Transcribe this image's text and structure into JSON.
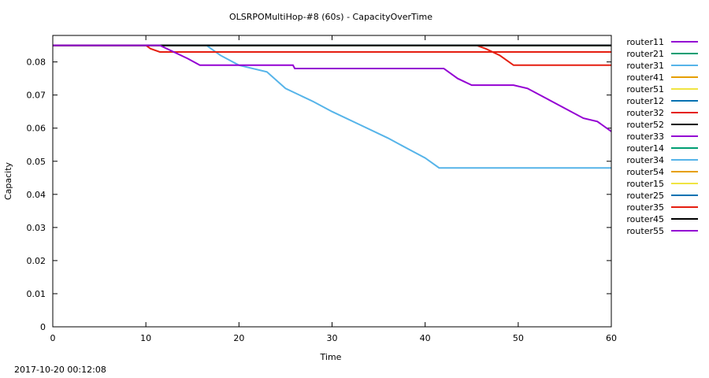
{
  "footer": {
    "timestamp": "2017-10-20 00:12:08"
  },
  "chart_data": {
    "type": "line",
    "title": "OLSRPOMultiHop-#8 (60s) - CapacityOverTime",
    "xlabel": "Time",
    "ylabel": "Capacity",
    "xlim": [
      0,
      60
    ],
    "ylim": [
      0,
      0.088
    ],
    "xticks": [
      0,
      10,
      20,
      30,
      40,
      50,
      60
    ],
    "yticks": [
      0,
      0.01,
      0.02,
      0.03,
      0.04,
      0.05,
      0.06,
      0.07,
      0.08
    ],
    "grid": false,
    "legend_position": "outside-right",
    "series": [
      {
        "name": "router11",
        "color": "#9400d3",
        "points": [
          [
            0,
            0.085
          ],
          [
            60,
            0.085
          ]
        ]
      },
      {
        "name": "router21",
        "color": "#009e73",
        "points": [
          [
            0,
            0.085
          ],
          [
            60,
            0.085
          ]
        ]
      },
      {
        "name": "router31",
        "color": "#56b4e9",
        "points": [
          [
            0,
            0.085
          ],
          [
            60,
            0.085
          ]
        ]
      },
      {
        "name": "router41",
        "color": "#e69f00",
        "points": [
          [
            0,
            0.085
          ],
          [
            60,
            0.085
          ]
        ]
      },
      {
        "name": "router51",
        "color": "#f0e442",
        "points": [
          [
            0,
            0.085
          ],
          [
            60,
            0.085
          ]
        ]
      },
      {
        "name": "router12",
        "color": "#0072b2",
        "points": [
          [
            0,
            0.085
          ],
          [
            60,
            0.085
          ]
        ]
      },
      {
        "name": "router32",
        "color": "#e51e10",
        "points": [
          [
            0,
            0.085
          ],
          [
            45.5,
            0.085
          ],
          [
            46.5,
            0.084
          ],
          [
            48,
            0.082
          ],
          [
            49.5,
            0.079
          ],
          [
            60,
            0.079
          ]
        ]
      },
      {
        "name": "router52",
        "color": "#000000",
        "points": [
          [
            0,
            0.085
          ],
          [
            60,
            0.085
          ]
        ]
      },
      {
        "name": "router33",
        "color": "#9400d3",
        "points": [
          [
            0,
            0.085
          ],
          [
            60,
            0.085
          ]
        ]
      },
      {
        "name": "router14",
        "color": "#009e73",
        "points": [
          [
            0,
            0.085
          ],
          [
            60,
            0.085
          ]
        ]
      },
      {
        "name": "router34",
        "color": "#56b4e9",
        "points": [
          [
            0,
            0.085
          ],
          [
            16.5,
            0.085
          ],
          [
            18,
            0.082
          ],
          [
            20,
            0.079
          ],
          [
            23,
            0.077
          ],
          [
            25,
            0.072
          ],
          [
            28,
            0.068
          ],
          [
            30,
            0.065
          ],
          [
            33,
            0.061
          ],
          [
            36,
            0.057
          ],
          [
            38,
            0.054
          ],
          [
            40,
            0.051
          ],
          [
            41.5,
            0.048
          ],
          [
            60,
            0.048
          ]
        ]
      },
      {
        "name": "router54",
        "color": "#e69f00",
        "points": [
          [
            0,
            0.085
          ],
          [
            60,
            0.085
          ]
        ]
      },
      {
        "name": "router15",
        "color": "#f0e442",
        "points": [
          [
            0,
            0.085
          ],
          [
            60,
            0.085
          ]
        ]
      },
      {
        "name": "router25",
        "color": "#0072b2",
        "points": [
          [
            0,
            0.085
          ],
          [
            60,
            0.085
          ]
        ]
      },
      {
        "name": "router35",
        "color": "#e51e10",
        "points": [
          [
            0,
            0.085
          ],
          [
            10,
            0.085
          ],
          [
            10.5,
            0.084
          ],
          [
            11.5,
            0.083
          ],
          [
            60,
            0.083
          ]
        ]
      },
      {
        "name": "router45",
        "color": "#000000",
        "points": [
          [
            0,
            0.085
          ],
          [
            60,
            0.085
          ]
        ]
      },
      {
        "name": "router55",
        "color": "#9400d3",
        "points": [
          [
            0,
            0.085
          ],
          [
            11.5,
            0.085
          ],
          [
            13,
            0.083
          ],
          [
            14.5,
            0.081
          ],
          [
            15.8,
            0.079
          ],
          [
            25.8,
            0.079
          ],
          [
            26,
            0.078
          ],
          [
            42,
            0.078
          ],
          [
            43.5,
            0.075
          ],
          [
            45,
            0.073
          ],
          [
            49.5,
            0.073
          ],
          [
            51,
            0.072
          ],
          [
            53,
            0.069
          ],
          [
            55,
            0.066
          ],
          [
            57,
            0.063
          ],
          [
            58.5,
            0.062
          ],
          [
            60,
            0.059
          ]
        ]
      }
    ]
  }
}
